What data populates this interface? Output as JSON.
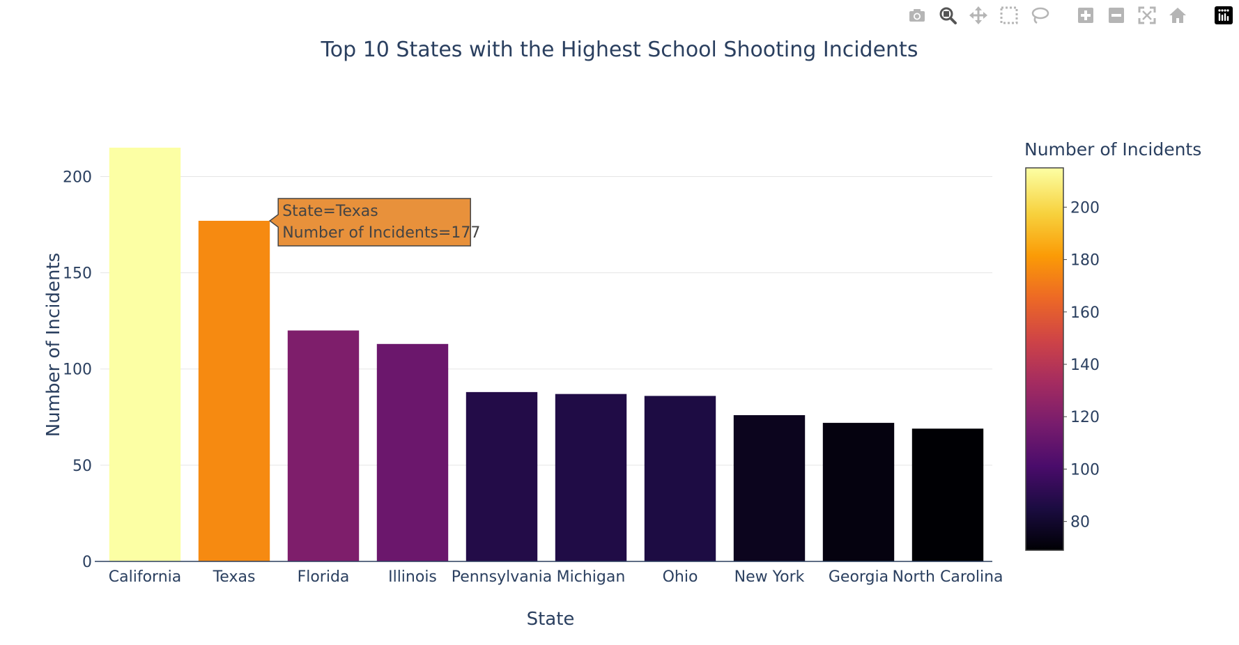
{
  "toolbar": {
    "buttons": [
      {
        "icon": "camera-icon",
        "title": "Download plot as a png"
      },
      {
        "icon": "zoom-icon",
        "title": "Zoom"
      },
      {
        "icon": "pan-icon",
        "title": "Pan"
      },
      {
        "icon": "box-select-icon",
        "title": "Box Select"
      },
      {
        "icon": "lasso-select-icon",
        "title": "Lasso Select"
      },
      {
        "icon": "zoom-in-icon",
        "title": "Zoom in"
      },
      {
        "icon": "zoom-out-icon",
        "title": "Zoom out"
      },
      {
        "icon": "autoscale-icon",
        "title": "Autoscale"
      },
      {
        "icon": "reset-axes-icon",
        "title": "Reset axes"
      },
      {
        "icon": "plotly-logo-icon",
        "title": "Produced with Plotly"
      }
    ]
  },
  "chart_data": {
    "type": "bar",
    "title": "Top 10 States with the Highest School Shooting Incidents",
    "xlabel": "State",
    "ylabel": "Number of Incidents",
    "categories": [
      "California",
      "Texas",
      "Florida",
      "Illinois",
      "Pennsylvania",
      "Michigan",
      "Ohio",
      "New York",
      "Georgia",
      "North Carolina"
    ],
    "values": [
      215,
      177,
      120,
      113,
      88,
      87,
      86,
      76,
      72,
      69
    ],
    "ylim": [
      0,
      215
    ],
    "yticks": [
      0,
      50,
      100,
      150,
      200
    ],
    "grid": true,
    "colorscale": "Inferno",
    "colorbar": {
      "title": "Number of Incidents",
      "range": [
        69,
        215
      ],
      "ticks": [
        80,
        100,
        120,
        140,
        160,
        180,
        200
      ]
    },
    "tooltip": {
      "category": "Texas",
      "line1": "State=Texas",
      "line2": "Number of Incidents=177",
      "color": "#e8913b"
    }
  }
}
